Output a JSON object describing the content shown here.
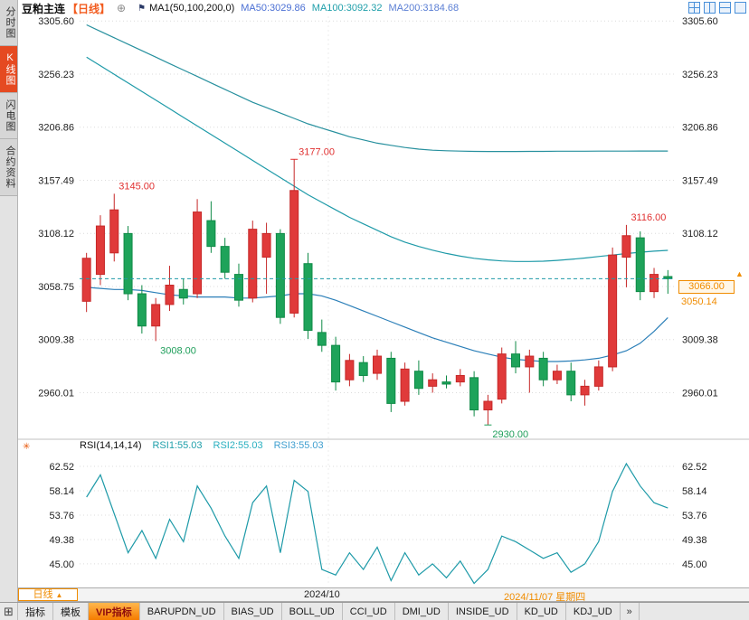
{
  "header": {
    "title": "豆粕主连",
    "period_tag": "【日线】",
    "ma_settings": "MA1(50,100,200,0)",
    "ma50": "MA50:3029.86",
    "ma100": "MA100:3092.32",
    "ma200": "MA200:3184.68"
  },
  "header_icons": [
    {
      "name": "layout-grid-icon"
    },
    {
      "name": "layout-vsplit-icon"
    },
    {
      "name": "layout-hsplit-icon"
    },
    {
      "name": "layout-single-icon"
    }
  ],
  "sidebar": {
    "items": [
      {
        "label": "分时图",
        "name": "sidebar-tab-time-chart",
        "selected": false
      },
      {
        "label": "K线图",
        "name": "sidebar-tab-kline-chart",
        "selected": true
      },
      {
        "label": "闪电图",
        "name": "sidebar-tab-lightning-chart",
        "selected": false
      },
      {
        "label": "合约资料",
        "name": "sidebar-tab-contract-info",
        "selected": false
      }
    ]
  },
  "rsi": {
    "name": "RSI(14,14,14)",
    "r1": "RSI1:55.03",
    "r2": "RSI2:55.03",
    "r3": "RSI3:55.03"
  },
  "price_line": {
    "value": "3066.00",
    "secondary": "3050.14"
  },
  "annotations": [
    {
      "text": "3145.00",
      "index": 2,
      "price": 3145,
      "side": "above",
      "color": "#e03131",
      "marker": false
    },
    {
      "text": "3177.00",
      "index": 15,
      "price": 3177,
      "side": "above",
      "color": "#e03131",
      "marker": true
    },
    {
      "text": "3116.00",
      "index": 39,
      "price": 3116,
      "side": "above",
      "color": "#e03131",
      "marker": false
    },
    {
      "text": "3008.00",
      "index": 5,
      "price": 3008,
      "side": "below",
      "color": "#1e9e5a",
      "marker": false
    },
    {
      "text": "2930.00",
      "index": 29,
      "price": 2930,
      "side": "below",
      "color": "#1e9e5a",
      "marker": true
    }
  ],
  "time_axis": {
    "period": "日线",
    "month": "2024/10",
    "date": "2024/11/07 星期四"
  },
  "toolbar": {
    "tabs": [
      {
        "label": "指标",
        "name": "toolbar-tab-indicators",
        "selected": false
      },
      {
        "label": "模板",
        "name": "toolbar-tab-templates",
        "selected": false
      },
      {
        "label": "VIP指标",
        "name": "toolbar-tab-vip-indicators",
        "selected": true
      },
      {
        "label": "BARUPDN_UD",
        "name": "toolbar-tab-barupdn",
        "selected": false
      },
      {
        "label": "BIAS_UD",
        "name": "toolbar-tab-bias",
        "selected": false
      },
      {
        "label": "BOLL_UD",
        "name": "toolbar-tab-boll",
        "selected": false
      },
      {
        "label": "CCI_UD",
        "name": "toolbar-tab-cci",
        "selected": false
      },
      {
        "label": "DMI_UD",
        "name": "toolbar-tab-dmi",
        "selected": false
      },
      {
        "label": "INSIDE_UD",
        "name": "toolbar-tab-inside",
        "selected": false
      },
      {
        "label": "KD_UD",
        "name": "toolbar-tab-kd",
        "selected": false
      },
      {
        "label": "KDJ_UD",
        "name": "toolbar-tab-kdj",
        "selected": false
      }
    ]
  },
  "icons": {
    "circle_plus": "⊕",
    "flag": "⚑",
    "star": "✳",
    "grid": "⊞",
    "more": "»",
    "up_arrow": "▲"
  },
  "colors": {
    "up": "#e03a3a",
    "up_stroke": "#c62828",
    "down": "#1ea35a",
    "down_stroke": "#0f8a46",
    "ma50": "#2b7fb8",
    "ma100": "#1e9aa8",
    "ma200": "#27909e",
    "rsi": "#1e9aa8",
    "grid": "#dcdcdc",
    "dashed": "#1e9aa8",
    "axis_text": "#222",
    "divider": "#c0c0c0"
  },
  "chart_data": {
    "type": "candlestick",
    "symbol": "豆粕主连",
    "period": "日线",
    "last_price": 3066,
    "ylim_main": [
      2920,
      3310
    ],
    "ylim_rsi": [
      41,
      65
    ],
    "y_ticks_main": [
      "3305.60",
      "3256.23",
      "3206.86",
      "3157.49",
      "3108.12",
      "3058.75",
      "3009.38",
      "2960.01"
    ],
    "y_ticks_rsi": [
      "62.52",
      "58.14",
      "53.76",
      "49.38",
      "45.00"
    ],
    "candles": [
      [
        3045,
        3090,
        3035,
        3085
      ],
      [
        3070,
        3125,
        3060,
        3115
      ],
      [
        3090,
        3145,
        3082,
        3130
      ],
      [
        3108,
        3115,
        3046,
        3052
      ],
      [
        3052,
        3060,
        3015,
        3022
      ],
      [
        3022,
        3048,
        3008,
        3042
      ],
      [
        3042,
        3078,
        3036,
        3060
      ],
      [
        3056,
        3066,
        3042,
        3048
      ],
      [
        3052,
        3140,
        3048,
        3128
      ],
      [
        3120,
        3138,
        3090,
        3096
      ],
      [
        3096,
        3104,
        3066,
        3072
      ],
      [
        3070,
        3080,
        3040,
        3046
      ],
      [
        3048,
        3120,
        3044,
        3112
      ],
      [
        3086,
        3118,
        3052,
        3108
      ],
      [
        3108,
        3112,
        3024,
        3030
      ],
      [
        3034,
        3177,
        3030,
        3148
      ],
      [
        3080,
        3090,
        3010,
        3018
      ],
      [
        3016,
        3028,
        2998,
        3004
      ],
      [
        3004,
        3012,
        2962,
        2970
      ],
      [
        2972,
        2996,
        2966,
        2990
      ],
      [
        2988,
        2994,
        2970,
        2976
      ],
      [
        2978,
        3000,
        2972,
        2994
      ],
      [
        2992,
        2998,
        2942,
        2950
      ],
      [
        2952,
        2988,
        2948,
        2982
      ],
      [
        2980,
        2990,
        2958,
        2964
      ],
      [
        2966,
        2978,
        2960,
        2972
      ],
      [
        2970,
        2976,
        2964,
        2968
      ],
      [
        2970,
        2982,
        2966,
        2976
      ],
      [
        2974,
        2980,
        2938,
        2944
      ],
      [
        2944,
        2958,
        2930,
        2952
      ],
      [
        2954,
        3002,
        2950,
        2996
      ],
      [
        2996,
        3008,
        2978,
        2984
      ],
      [
        2984,
        3000,
        2960,
        2994
      ],
      [
        2992,
        2998,
        2966,
        2972
      ],
      [
        2972,
        2986,
        2968,
        2980
      ],
      [
        2980,
        2988,
        2952,
        2958
      ],
      [
        2958,
        2972,
        2948,
        2966
      ],
      [
        2966,
        2990,
        2962,
        2984
      ],
      [
        2984,
        3095,
        2980,
        3088
      ],
      [
        3086,
        3116,
        3058,
        3106
      ],
      [
        3104,
        3110,
        3046,
        3054
      ],
      [
        3054,
        3076,
        3048,
        3070
      ],
      [
        3068,
        3074,
        3052,
        3066
      ]
    ],
    "ma50": [
      3058,
      3057,
      3056,
      3056,
      3055,
      3053,
      3051,
      3050,
      3049,
      3049,
      3049,
      3048,
      3048,
      3049,
      3050,
      3052,
      3052,
      3050,
      3046,
      3041,
      3036,
      3031,
      3026,
      3021,
      3016,
      3011,
      3007,
      3003,
      2999,
      2996,
      2993,
      2991,
      2990,
      2989,
      2989,
      2989.5,
      2990.5,
      2992,
      2995,
      2999,
      3006,
      3017,
      3029.86
    ],
    "ma100": [
      3272,
      3264,
      3256,
      3248,
      3240,
      3232,
      3224,
      3216,
      3208,
      3200,
      3192,
      3184,
      3176,
      3168,
      3160,
      3152,
      3144,
      3137,
      3130,
      3123,
      3117,
      3111,
      3105,
      3100,
      3096,
      3092.5,
      3089.5,
      3087,
      3085,
      3083.5,
      3082.5,
      3082,
      3082,
      3082.3,
      3083,
      3084,
      3085.2,
      3086.6,
      3088,
      3089.4,
      3090.6,
      3091.6,
      3092.32
    ],
    "ma200": [
      3302,
      3296,
      3290,
      3284,
      3278,
      3272,
      3266,
      3260,
      3254,
      3248,
      3242,
      3236,
      3230,
      3225,
      3220,
      3215,
      3210,
      3206,
      3202,
      3198,
      3195,
      3192,
      3190,
      3188,
      3186.5,
      3185.5,
      3185,
      3184.6,
      3184.4,
      3184.3,
      3184.3,
      3184.3,
      3184.4,
      3184.4,
      3184.5,
      3184.5,
      3184.5,
      3184.6,
      3184.6,
      3184.6,
      3184.7,
      3184.7,
      3184.68
    ],
    "rsi": [
      57,
      61,
      54,
      47,
      51,
      46,
      53,
      49,
      59,
      55,
      50,
      46,
      56,
      59,
      47,
      60,
      58,
      44,
      43,
      47,
      44,
      48,
      42,
      47,
      43,
      45,
      42.5,
      45.5,
      41.5,
      44,
      50,
      49,
      47.5,
      46,
      47,
      43.5,
      45,
      49,
      58,
      63,
      59,
      56,
      55.03
    ]
  }
}
